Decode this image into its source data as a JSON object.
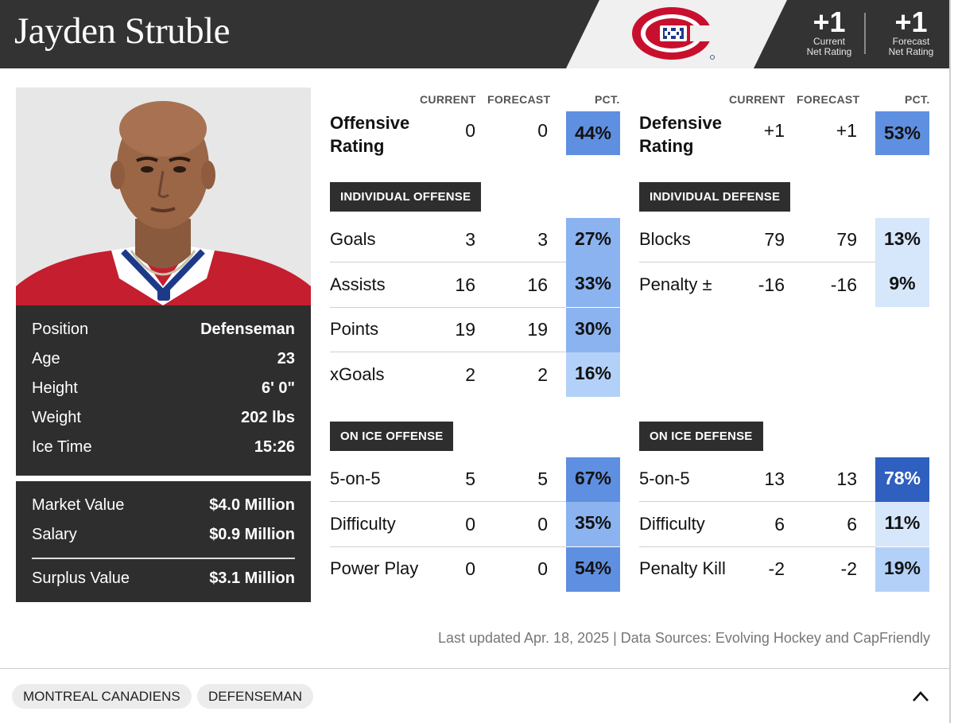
{
  "header": {
    "player_name": "Jayden Struble",
    "team_logo_icon": "montreal-canadiens-logo",
    "current_net_rating": {
      "value": "+1",
      "label_line1": "Current",
      "label_line2": "Net Rating"
    },
    "forecast_net_rating": {
      "value": "+1",
      "label_line1": "Forecast",
      "label_line2": "Net Rating"
    }
  },
  "player_info": [
    {
      "label": "Position",
      "value": "Defenseman"
    },
    {
      "label": "Age",
      "value": "23"
    },
    {
      "label": "Height",
      "value": "6' 0\""
    },
    {
      "label": "Weight",
      "value": "202 lbs"
    },
    {
      "label": "Ice Time",
      "value": "15:26"
    }
  ],
  "contract": {
    "market_value": {
      "label": "Market Value",
      "value": "$4.0 Million"
    },
    "salary": {
      "label": "Salary",
      "value": "$0.9 Million"
    },
    "surplus_value": {
      "label": "Surplus Value",
      "value": "$3.1 Million"
    }
  },
  "columns": {
    "current": "CURRENT",
    "forecast": "FORECAST",
    "pct": "PCT."
  },
  "offense": {
    "rating_title_line1": "Offensive",
    "rating_title_line2": "Rating",
    "rating": {
      "current": "0",
      "forecast": "0",
      "pct": "44%",
      "pct_num": 44
    },
    "individual_label": "INDIVIDUAL OFFENSE",
    "individual": [
      {
        "label": "Goals",
        "current": "3",
        "forecast": "3",
        "pct": "27%",
        "pct_num": 27
      },
      {
        "label": "Assists",
        "current": "16",
        "forecast": "16",
        "pct": "33%",
        "pct_num": 33
      },
      {
        "label": "Points",
        "current": "19",
        "forecast": "19",
        "pct": "30%",
        "pct_num": 30
      },
      {
        "label": "xGoals",
        "current": "2",
        "forecast": "2",
        "pct": "16%",
        "pct_num": 16
      }
    ],
    "on_ice_label": "ON ICE OFFENSE",
    "on_ice": [
      {
        "label": "5-on-5",
        "current": "5",
        "forecast": "5",
        "pct": "67%",
        "pct_num": 67
      },
      {
        "label": "Difficulty",
        "current": "0",
        "forecast": "0",
        "pct": "35%",
        "pct_num": 35
      },
      {
        "label": "Power Play",
        "current": "0",
        "forecast": "0",
        "pct": "54%",
        "pct_num": 54
      }
    ]
  },
  "defense": {
    "rating_title_line1": "Defensive",
    "rating_title_line2": "Rating",
    "rating": {
      "current": "+1",
      "forecast": "+1",
      "pct": "53%",
      "pct_num": 53
    },
    "individual_label": "INDIVIDUAL DEFENSE",
    "individual": [
      {
        "label": "Blocks",
        "current": "79",
        "forecast": "79",
        "pct": "13%",
        "pct_num": 13
      },
      {
        "label": "Penalty ±",
        "current": "-16",
        "forecast": "-16",
        "pct": "9%",
        "pct_num": 9
      }
    ],
    "on_ice_label": "ON ICE DEFENSE",
    "on_ice": [
      {
        "label": "5-on-5",
        "current": "13",
        "forecast": "13",
        "pct": "78%",
        "pct_num": 78
      },
      {
        "label": "Difficulty",
        "current": "6",
        "forecast": "6",
        "pct": "11%",
        "pct_num": 11
      },
      {
        "label": "Penalty Kill",
        "current": "-2",
        "forecast": "-2",
        "pct": "19%",
        "pct_num": 19
      }
    ]
  },
  "footer_note": "Last updated Apr. 18, 2025 | Data Sources: Evolving Hockey and CapFriendly",
  "tags": [
    "MONTREAL CANADIENS",
    "DEFENSEMAN"
  ],
  "collapse_icon": "chevron-up-icon",
  "colors": {
    "header_bg": "#333333",
    "panel_bg": "#2e2e2e",
    "pct_scale": [
      "#d6e6fb",
      "#b3d1f8",
      "#8bb3ef",
      "#5f8fe0",
      "#2f5fbf"
    ]
  }
}
